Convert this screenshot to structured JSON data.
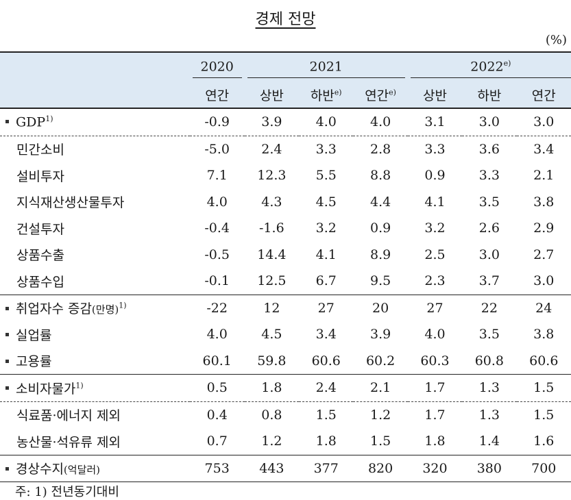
{
  "title": "경제 전망",
  "unit": "(%)",
  "header": {
    "years": [
      {
        "label": "2020",
        "sup": "",
        "span": 1
      },
      {
        "label": "2021",
        "sup": "",
        "span": 3
      },
      {
        "label": "2022",
        "sup": "e)",
        "span": 3
      }
    ],
    "periods": [
      {
        "label": "연간",
        "sup": ""
      },
      {
        "label": "상반",
        "sup": ""
      },
      {
        "label": "하반",
        "sup": "e)"
      },
      {
        "label": "연간",
        "sup": "e)"
      },
      {
        "label": "상반",
        "sup": ""
      },
      {
        "label": "하반",
        "sup": ""
      },
      {
        "label": "연간",
        "sup": ""
      }
    ]
  },
  "rows": [
    {
      "label": "GDP",
      "sup": "1)",
      "unit": "",
      "bullet": true,
      "values": [
        "-0.9",
        "3.9",
        "4.0",
        "4.0",
        "3.1",
        "3.0",
        "3.0"
      ]
    },
    {
      "label": "민간소비",
      "sup": "",
      "unit": "",
      "bullet": false,
      "values": [
        "-5.0",
        "2.4",
        "3.3",
        "2.8",
        "3.3",
        "3.6",
        "3.4"
      ]
    },
    {
      "label": "설비투자",
      "sup": "",
      "unit": "",
      "bullet": false,
      "values": [
        "7.1",
        "12.3",
        "5.5",
        "8.8",
        "0.9",
        "3.3",
        "2.1"
      ]
    },
    {
      "label": "지식재산생산물투자",
      "sup": "",
      "unit": "",
      "bullet": false,
      "values": [
        "4.0",
        "4.3",
        "4.5",
        "4.4",
        "4.1",
        "3.5",
        "3.8"
      ]
    },
    {
      "label": "건설투자",
      "sup": "",
      "unit": "",
      "bullet": false,
      "values": [
        "-0.4",
        "-1.6",
        "3.2",
        "0.9",
        "3.2",
        "2.6",
        "2.9"
      ]
    },
    {
      "label": "상품수출",
      "sup": "",
      "unit": "",
      "bullet": false,
      "values": [
        "-0.5",
        "14.4",
        "4.1",
        "8.9",
        "2.5",
        "3.0",
        "2.7"
      ]
    },
    {
      "label": "상품수입",
      "sup": "",
      "unit": "",
      "bullet": false,
      "values": [
        "-0.1",
        "12.5",
        "6.7",
        "9.5",
        "2.3",
        "3.7",
        "3.0"
      ]
    },
    {
      "label": "취업자수 증감",
      "sup": "1)",
      "unit": "(만명)",
      "bullet": true,
      "values": [
        "-22",
        "12",
        "27",
        "20",
        "27",
        "22",
        "24"
      ]
    },
    {
      "label": "실업률",
      "sup": "",
      "unit": "",
      "bullet": true,
      "values": [
        "4.0",
        "4.5",
        "3.4",
        "3.9",
        "4.0",
        "3.5",
        "3.8"
      ]
    },
    {
      "label": "고용률",
      "sup": "",
      "unit": "",
      "bullet": true,
      "values": [
        "60.1",
        "59.8",
        "60.6",
        "60.2",
        "60.3",
        "60.8",
        "60.6"
      ]
    },
    {
      "label": "소비자물가",
      "sup": "1)",
      "unit": "",
      "bullet": true,
      "values": [
        "0.5",
        "1.8",
        "2.4",
        "2.1",
        "1.7",
        "1.3",
        "1.5"
      ]
    },
    {
      "label": "식료품·에너지 제외",
      "sup": "",
      "unit": "",
      "bullet": false,
      "values": [
        "0.4",
        "0.8",
        "1.5",
        "1.2",
        "1.7",
        "1.3",
        "1.5"
      ]
    },
    {
      "label": "농산물·석유류 제외",
      "sup": "",
      "unit": "",
      "bullet": false,
      "values": [
        "0.7",
        "1.2",
        "1.8",
        "1.5",
        "1.8",
        "1.4",
        "1.6"
      ]
    },
    {
      "label": "경상수지",
      "sup": "",
      "unit": "(억달러)",
      "bullet": true,
      "values": [
        "753",
        "443",
        "377",
        "820",
        "320",
        "380",
        "700"
      ]
    }
  ],
  "note": "주: 1) 전년동기대비",
  "colors": {
    "header_bg": "#dde9f4",
    "rule": "#222222"
  }
}
